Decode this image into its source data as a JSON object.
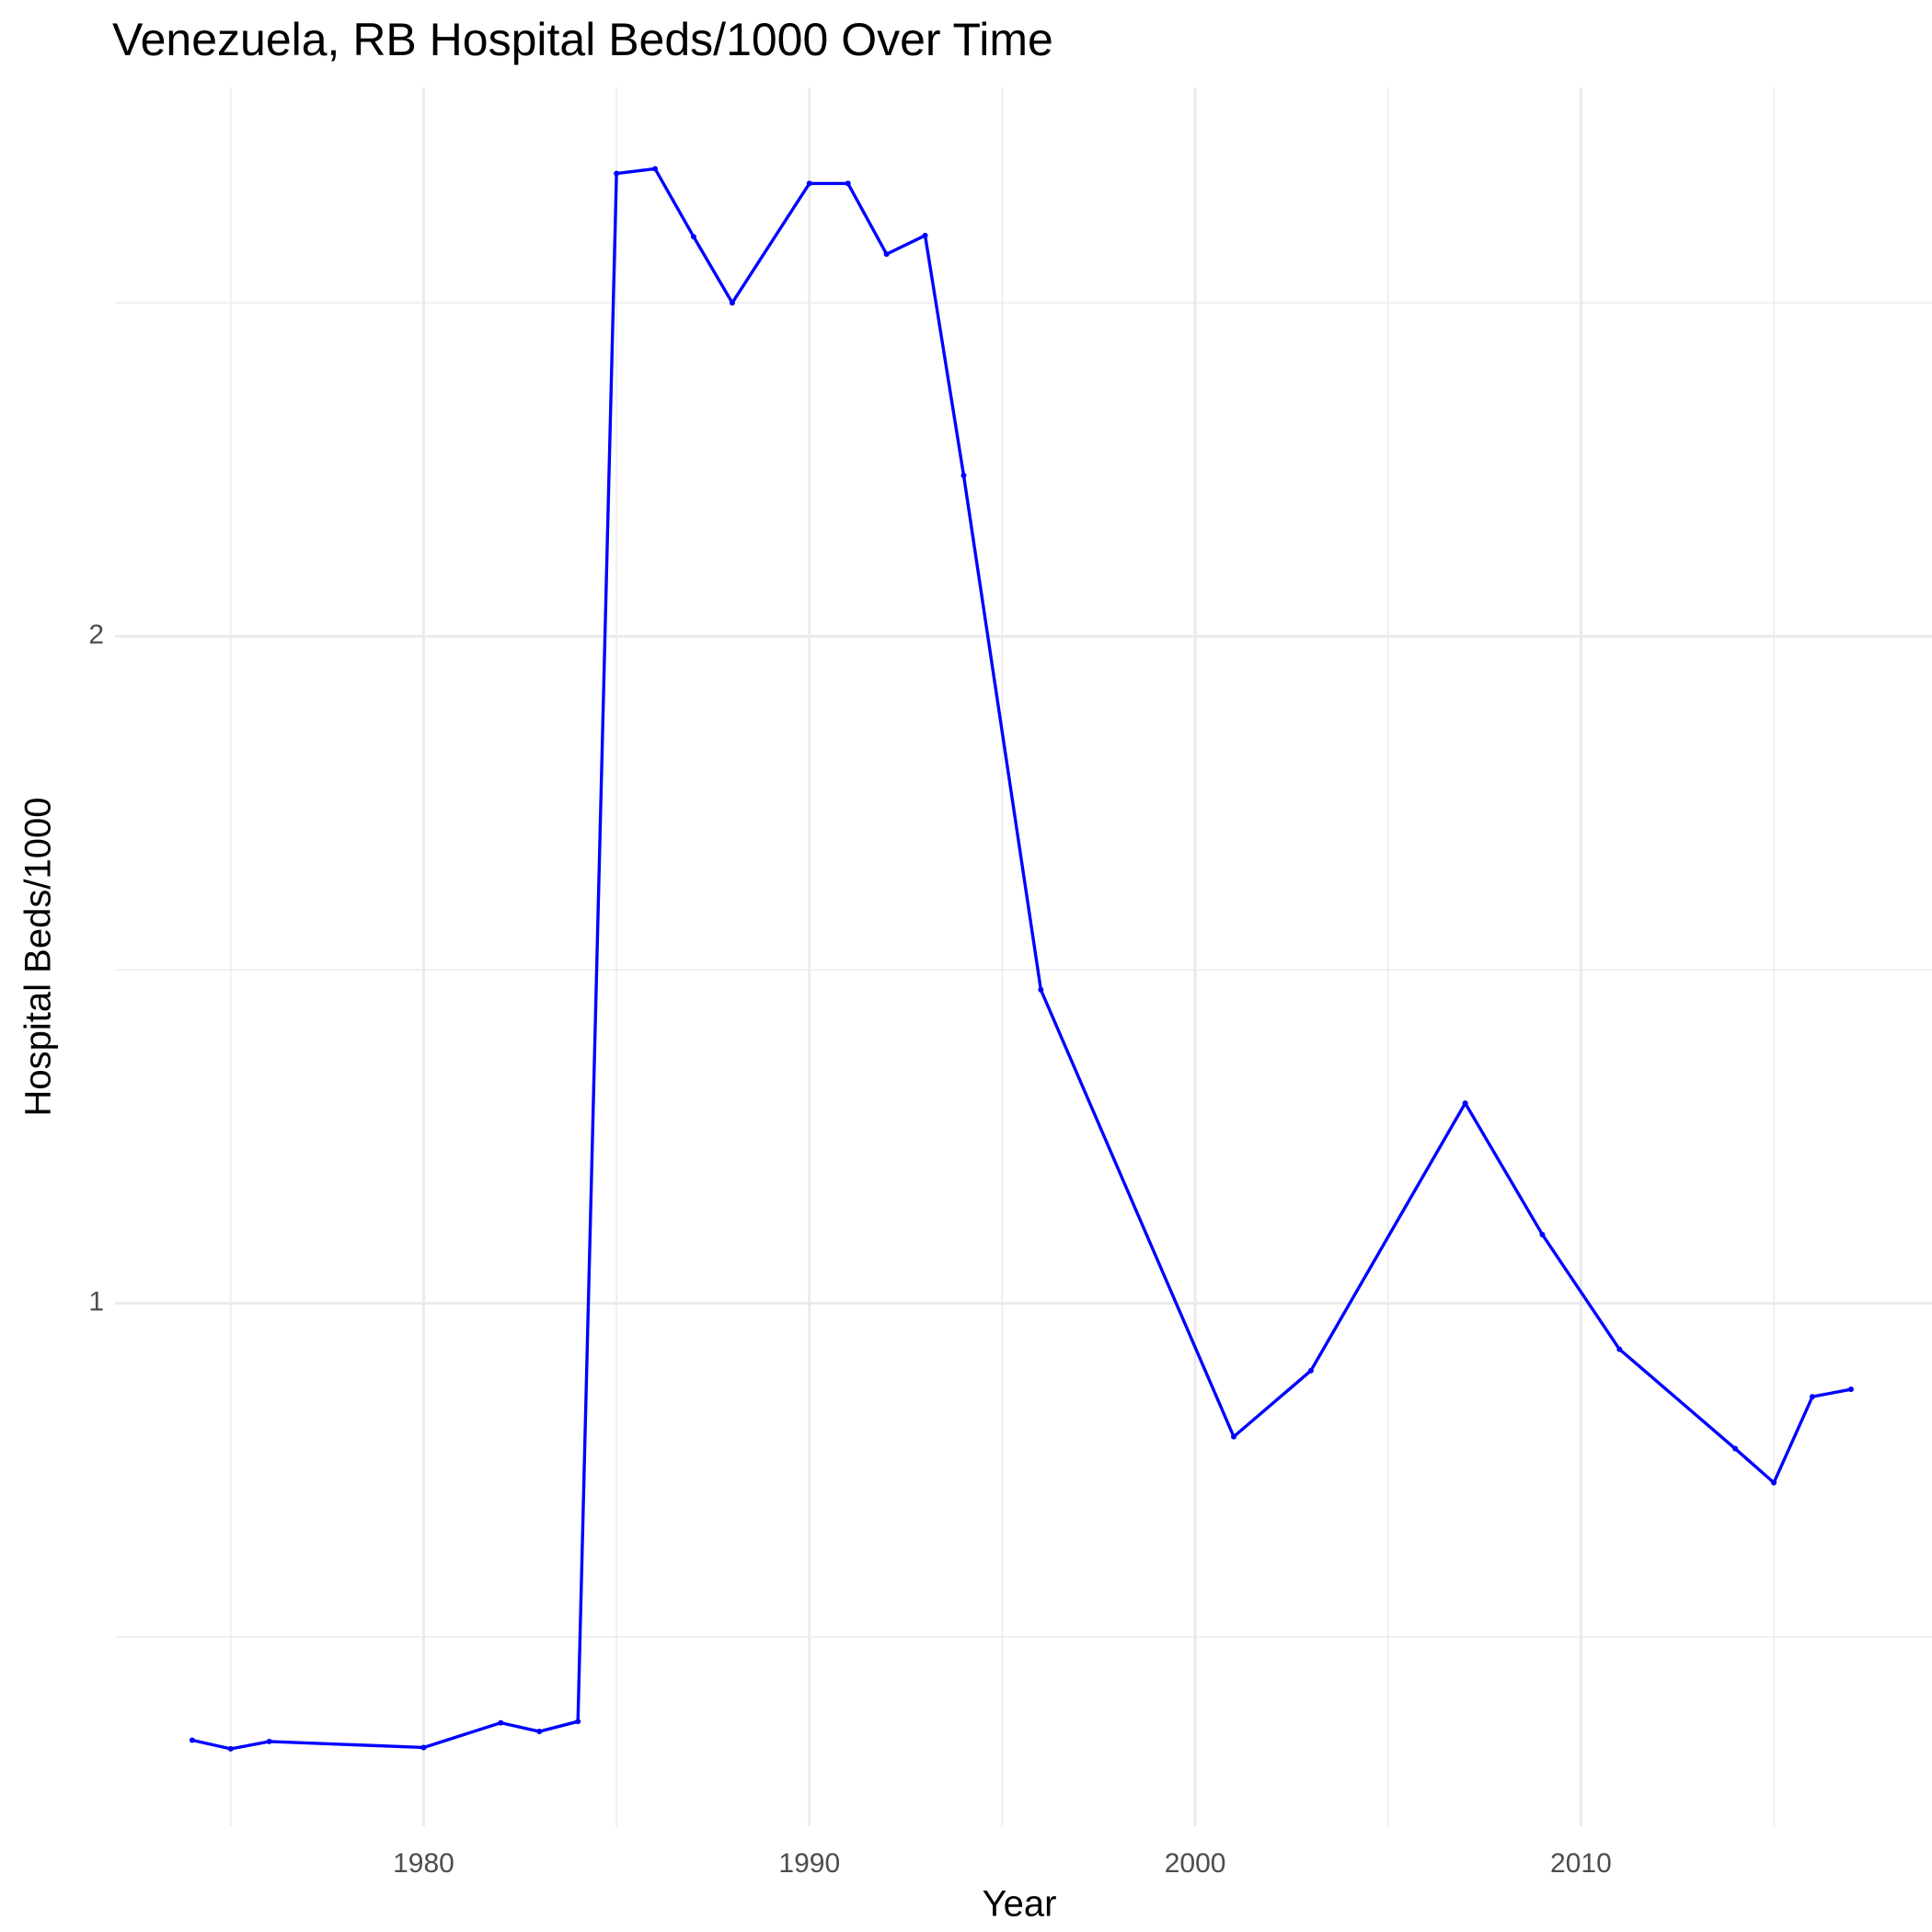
{
  "chart_data": {
    "type": "line",
    "title": "Venezuela, RB Hospital Beds/1000 Over Time",
    "x_label": "Year",
    "y_label": "Hospital Beds/1000",
    "x": [
      1974,
      1975,
      1976,
      1980,
      1982,
      1983,
      1984,
      1985,
      1986,
      1987,
      1988,
      1990,
      1991,
      1992,
      1993,
      1994,
      1996,
      2001,
      2003,
      2007,
      2009,
      2011,
      2014,
      2015,
      2016,
      2017
    ],
    "series": [
      {
        "name": "Hospital Beds/1000",
        "color": "#0000ff",
        "values": [
          0.345,
          0.332,
          0.343,
          0.334,
          0.371,
          0.358,
          0.373,
          2.694,
          2.701,
          2.599,
          2.5,
          2.679,
          2.679,
          2.573,
          2.601,
          2.241,
          1.47,
          0.8,
          0.899,
          1.3,
          1.103,
          0.931,
          0.782,
          0.731,
          0.86,
          0.871
        ]
      }
    ],
    "xlim": [
      1972.0,
      2019.1
    ],
    "ylim": [
      0.216,
      2.823
    ],
    "xticks": [
      1980,
      1990,
      2000,
      2010
    ],
    "yticks": [
      1,
      2
    ],
    "x_minor_ticks": [
      1975,
      1985,
      1995,
      2005,
      2015
    ],
    "y_minor_ticks": [
      0.5,
      1.5,
      2.5
    ],
    "grid": true
  }
}
